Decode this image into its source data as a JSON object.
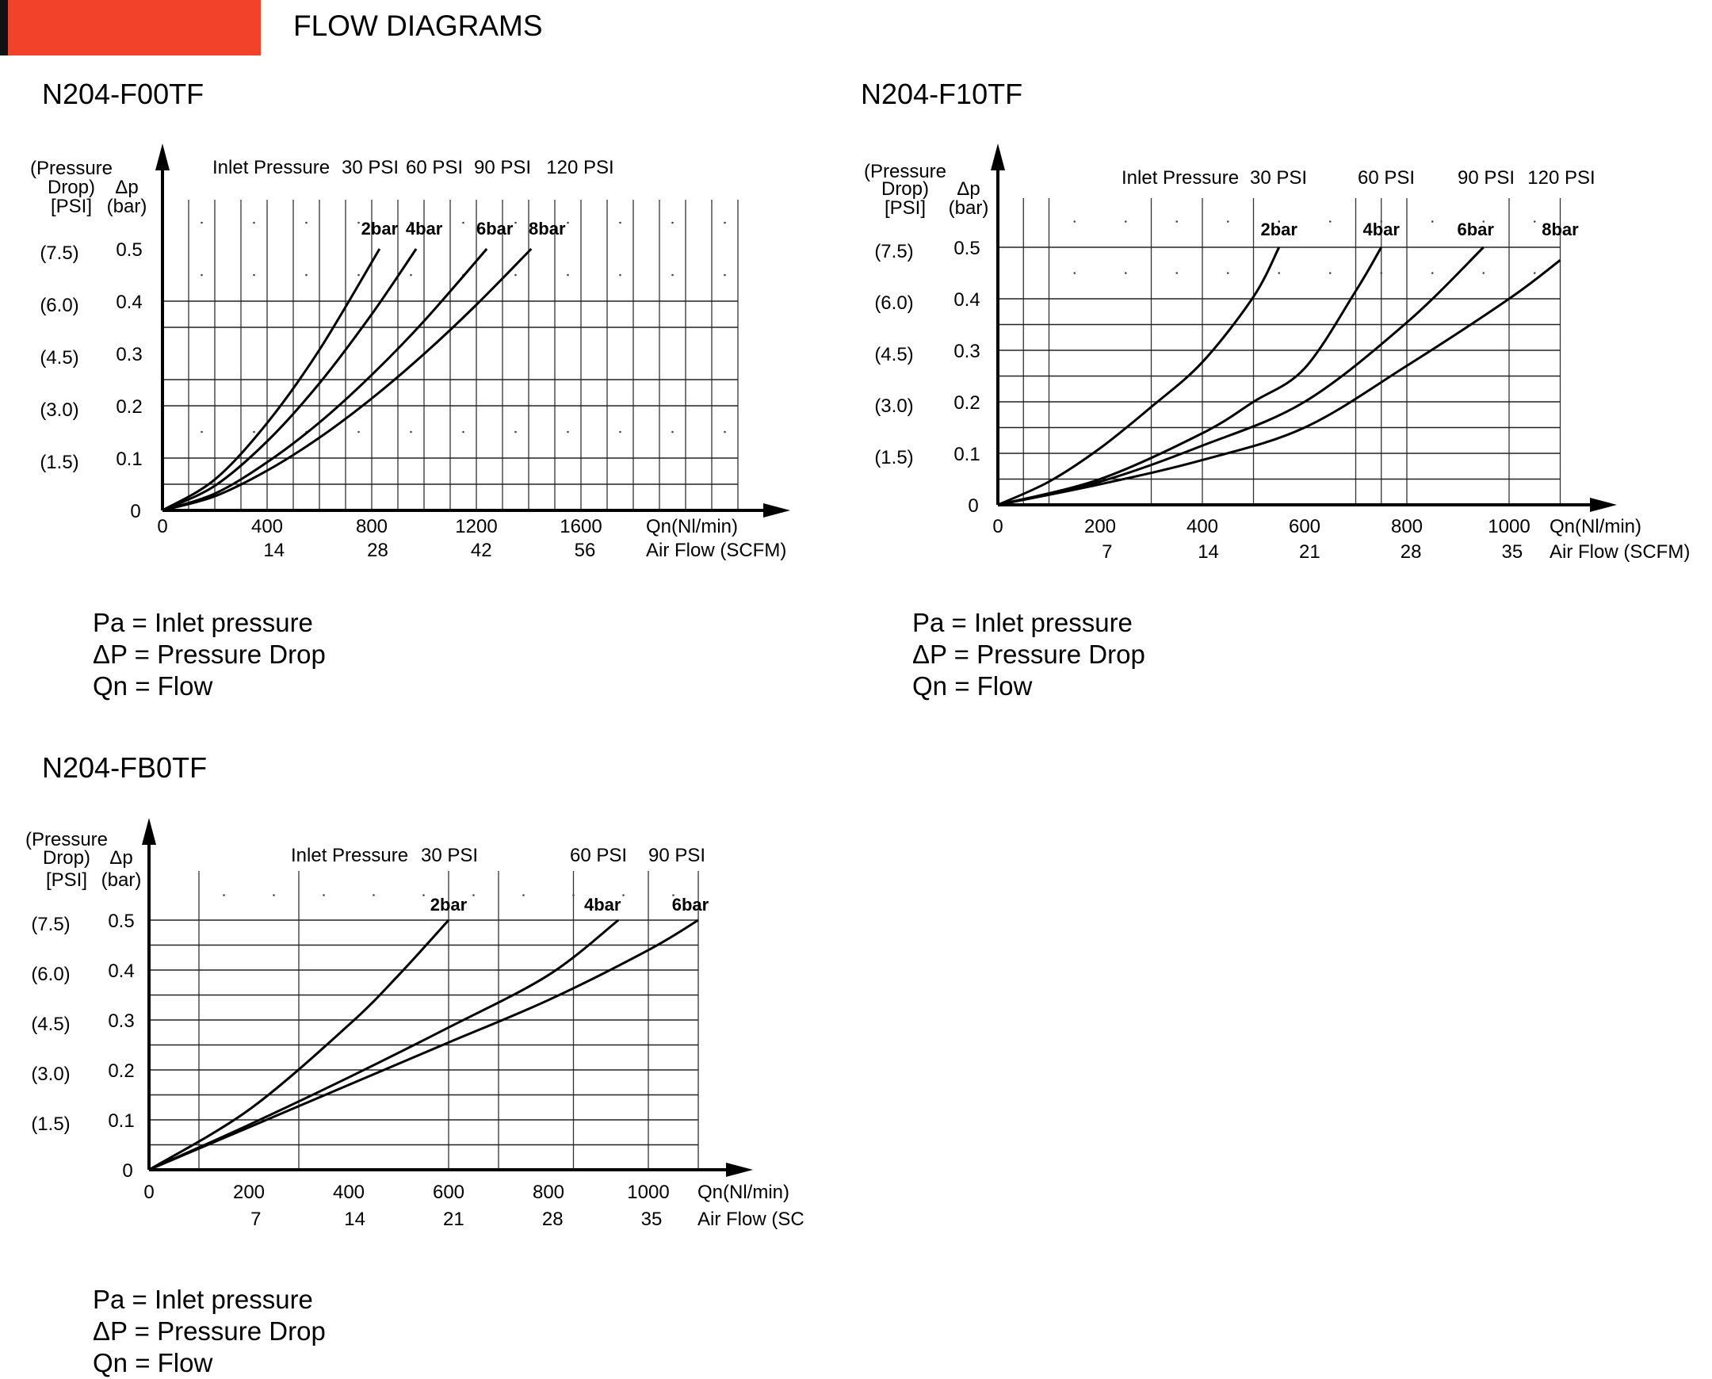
{
  "header": {
    "title": "FLOW DIAGRAMS",
    "accent_color": "#f2432a"
  },
  "legend": [
    "Pa = Inlet pressure",
    "ΔP = Pressure Drop",
    "Qn = Flow"
  ],
  "chart_data": [
    {
      "type": "line",
      "title": "N204-F00TF",
      "xlabel": "Qn(Nl/min)",
      "xlabel2": "Air Flow (SCFM)",
      "ylabel_psi": [
        "(Pressure",
        "Drop)",
        "[PSI]"
      ],
      "ylabel_bar": [
        "Δp",
        "(bar)"
      ],
      "xlim": [
        0,
        2200
      ],
      "ylim": [
        0,
        0.5
      ],
      "x_ticks": [
        0,
        400,
        800,
        1200,
        1600
      ],
      "scfm_ticks": [
        14,
        28,
        42,
        56
      ],
      "y_ticks": [
        0,
        0.1,
        0.2,
        0.3,
        0.4,
        0.5
      ],
      "psi_ticks": [
        "(1.5)",
        "(3.0)",
        "(4.5)",
        "(6.0)",
        "(7.5)"
      ],
      "inlet_label": "Inlet Pressure",
      "inlet_pressures": [
        "30 PSI",
        "60 PSI",
        "90 PSI",
        "120 PSI"
      ],
      "grid": true,
      "series": [
        {
          "name": "2bar",
          "x": [
            0,
            200,
            400,
            600,
            830
          ],
          "y": [
            0,
            0.059,
            0.167,
            0.307,
            0.5
          ]
        },
        {
          "name": "4bar",
          "x": [
            0,
            200,
            400,
            600,
            800,
            970
          ],
          "y": [
            0,
            0.047,
            0.132,
            0.243,
            0.375,
            0.5
          ]
        },
        {
          "name": "6bar",
          "x": [
            0,
            200,
            400,
            600,
            800,
            1000,
            1240
          ],
          "y": [
            0,
            0.032,
            0.092,
            0.168,
            0.259,
            0.362,
            0.5
          ]
        },
        {
          "name": "8bar",
          "x": [
            0,
            200,
            400,
            600,
            800,
            1000,
            1200,
            1410
          ],
          "y": [
            0,
            0.027,
            0.076,
            0.139,
            0.214,
            0.299,
            0.393,
            0.5
          ]
        }
      ]
    },
    {
      "type": "line",
      "title": "N204-F10TF",
      "xlabel": "Qn(Nl/min)",
      "xlabel2": "Air Flow (SCFM)",
      "ylabel_psi": [
        "(Pressure",
        "Drop)",
        "[PSI]"
      ],
      "ylabel_bar": [
        "Δp",
        "(bar)"
      ],
      "xlim": [
        0,
        1100
      ],
      "ylim": [
        0,
        0.5
      ],
      "x_ticks": [
        0,
        200,
        400,
        600,
        800,
        1000
      ],
      "scfm_ticks": [
        7,
        14,
        21,
        28,
        35
      ],
      "y_ticks": [
        0,
        0.1,
        0.2,
        0.3,
        0.4,
        0.5
      ],
      "psi_ticks": [
        "(1.5)",
        "(3.0)",
        "(4.5)",
        "(6.0)",
        "(7.5)"
      ],
      "inlet_label": "Inlet Pressure",
      "inlet_pressures": [
        "30 PSI",
        "60 PSI",
        "90 PSI",
        "120 PSI"
      ],
      "grid": true,
      "series": [
        {
          "name": "2bar",
          "x": [
            0,
            100,
            200,
            300,
            400,
            500,
            550
          ],
          "y": [
            0,
            0.045,
            0.11,
            0.19,
            0.277,
            0.404,
            0.5
          ]
        },
        {
          "name": "4bar",
          "x": [
            0,
            200,
            400,
            500,
            600,
            700,
            750
          ],
          "y": [
            0,
            0.05,
            0.139,
            0.2,
            0.265,
            0.415,
            0.5
          ]
        },
        {
          "name": "6bar",
          "x": [
            0,
            200,
            400,
            600,
            800,
            950
          ],
          "y": [
            0,
            0.045,
            0.115,
            0.2,
            0.354,
            0.5
          ]
        },
        {
          "name": "8bar",
          "x": [
            0,
            200,
            400,
            600,
            800,
            1000,
            1100
          ],
          "y": [
            0,
            0.04,
            0.087,
            0.15,
            0.27,
            0.4,
            0.475
          ]
        }
      ]
    },
    {
      "type": "line",
      "title": "N204-FB0TF",
      "xlabel": "Qn(Nl/min)",
      "xlabel2": "Air Flow (SC",
      "ylabel_psi": [
        "(Pressure",
        "Drop)",
        "[PSI]"
      ],
      "ylabel_bar": [
        "Δp",
        "(bar)"
      ],
      "xlim": [
        0,
        1100
      ],
      "ylim": [
        0,
        0.5
      ],
      "x_ticks": [
        0,
        200,
        400,
        600,
        800,
        1000
      ],
      "scfm_ticks": [
        7,
        14,
        21,
        28,
        35
      ],
      "y_ticks": [
        0,
        0.1,
        0.2,
        0.3,
        0.4,
        0.5
      ],
      "psi_ticks": [
        "(1.5)",
        "(3.0)",
        "(4.5)",
        "(6.0)",
        "(7.5)"
      ],
      "inlet_label": "Inlet Pressure",
      "inlet_pressures": [
        "30 PSI",
        "60 PSI",
        "90 PSI"
      ],
      "grid": true,
      "series": [
        {
          "name": "2bar",
          "x": [
            0,
            200,
            400,
            500,
            600
          ],
          "y": [
            0,
            0.12,
            0.29,
            0.39,
            0.5
          ]
        },
        {
          "name": "4bar",
          "x": [
            0,
            200,
            400,
            600,
            800,
            940
          ],
          "y": [
            0,
            0.09,
            0.185,
            0.285,
            0.39,
            0.5
          ]
        },
        {
          "name": "6bar",
          "x": [
            0,
            200,
            400,
            600,
            800,
            1000,
            1100
          ],
          "y": [
            0,
            0.085,
            0.17,
            0.255,
            0.34,
            0.44,
            0.5
          ]
        }
      ]
    }
  ]
}
